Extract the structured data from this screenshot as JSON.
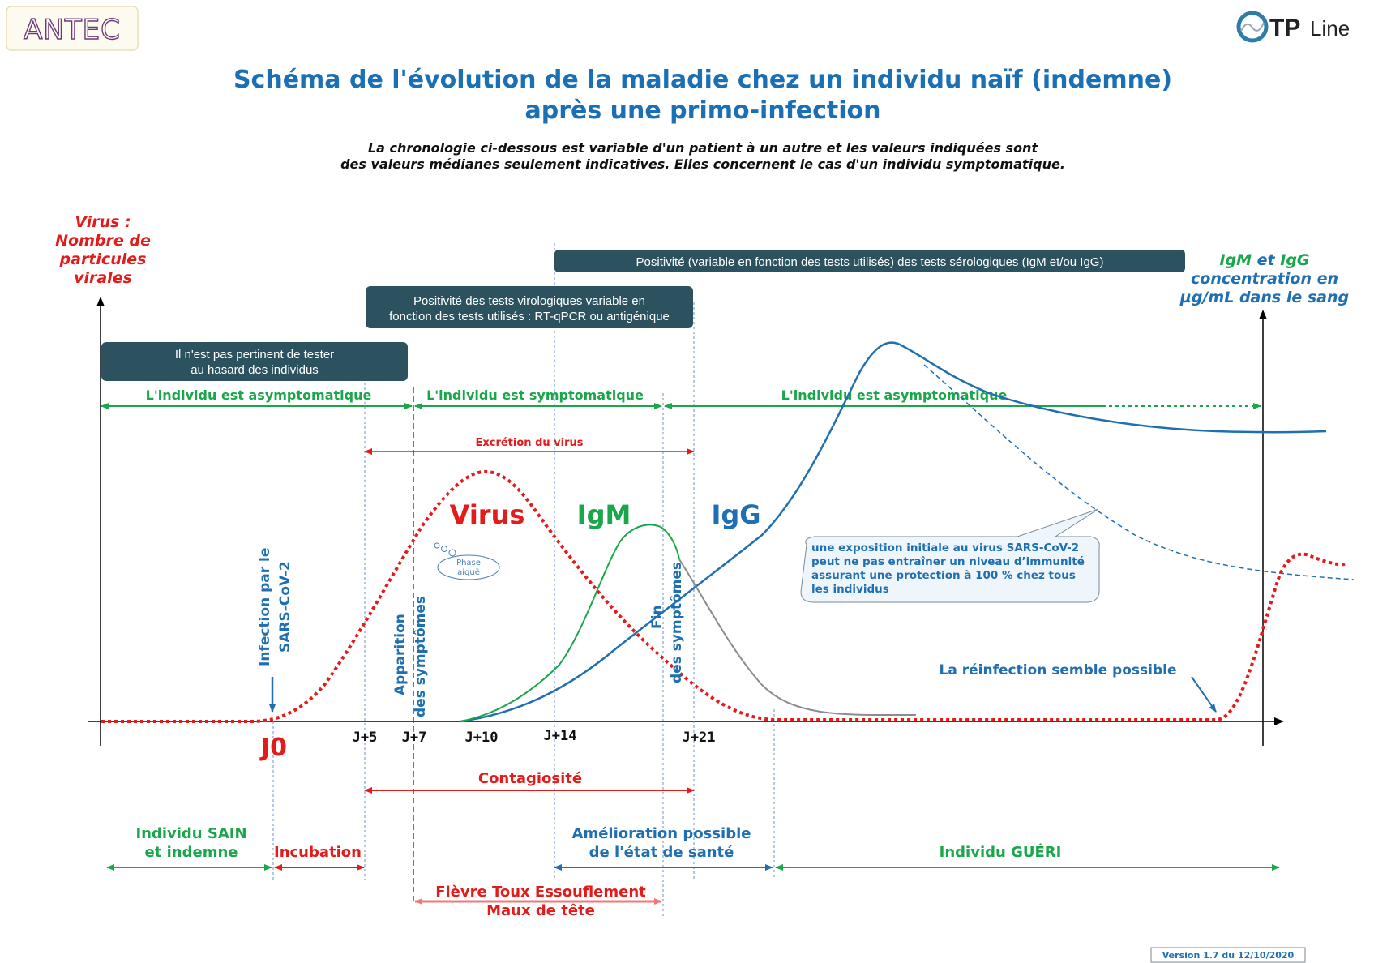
{
  "logos": {
    "left": "ANTEC",
    "right_prefix": "TP",
    "right_suffix": "Line"
  },
  "title": {
    "line1": "Schéma de l'évolution de la maladie chez un individu naïf (indemne)",
    "line2": "après une primo-infection"
  },
  "subtitle": {
    "line1": "La chronologie ci-dessous est variable d'un patient à un autre et les valeurs  indiquées sont",
    "line2": "des valeurs médianes seulement indicatives. Elles concernent le cas d'un individu symptomatique."
  },
  "axes": {
    "left_label": [
      "Virus :",
      "Nombre de",
      "particules",
      "virales"
    ],
    "right_label_l1a": "IgM",
    "right_label_l1b": " et ",
    "right_label_l1c": "IgG",
    "right_label_l2": "concentration en",
    "right_label_l3": "µg/mL dans le sang"
  },
  "boxes": {
    "serology": "Positivité (variable en fonction des tests utilisés) des tests sérologiques (IgM et/ou IgG)",
    "virology_l1": "Positivité des tests virologiques variable en",
    "virology_l2": "fonction des tests utilisés : RT-qPCR ou antigénique",
    "random_l1": "Il n'est pas pertinent de tester",
    "random_l2": "au hasard des individus"
  },
  "phases": {
    "asymptomatic_1": "L'individu est asymptomatique",
    "symptomatic": "L'individu est symptomatique",
    "asymptomatic_2": "L'individu est asymptomatique",
    "excretion": "Excrétion du virus",
    "contagiosity": "Contagiosité"
  },
  "curve_labels": {
    "virus": "Virus",
    "igm": "IgM",
    "igg": "IgG",
    "phase_l1": "Phase",
    "phase_l2": "aiguë"
  },
  "vertical_labels": {
    "infection_l1": "Infection par le",
    "infection_l2": "SARS-CoV-2",
    "onset_l1": "Apparition",
    "onset_l2": "des symptômes",
    "end_l1": "Fin",
    "end_l2": "des symptômes"
  },
  "days": {
    "j0": "J0",
    "j5": "J+5",
    "j7": "J+7",
    "j10": "J+10",
    "j14": "J+14",
    "j21": "J+21"
  },
  "note": {
    "l1": "une exposition initiale au virus SARS-CoV-2",
    "l2": "peut ne pas entraîner un niveau d’immunité",
    "l3": "assurant une protection à 100 % chez tous",
    "l4": "les individus"
  },
  "reinfection": "La réinfection semble possible",
  "bottom": {
    "healthy_l1": "Individu SAIN",
    "healthy_l2": "et indemne",
    "incubation": "Incubation",
    "improvement_l1": "Amélioration possible",
    "improvement_l2": "de l'état de santé",
    "cured": "Individu GUÉRI",
    "symptoms_l1": "Fièvre Toux Essouflement",
    "symptoms_l2": "Maux de tête"
  },
  "version": "Version 1.7 du 12/10/2020",
  "colors": {
    "blue_title": "#1a6fb5",
    "red": "#e31b1b",
    "green": "#1aa64a",
    "blue_curve": "#1f6fb2",
    "box": "#2b525e",
    "gray": "#8c8c8c",
    "pink": "#f07a7a"
  }
}
